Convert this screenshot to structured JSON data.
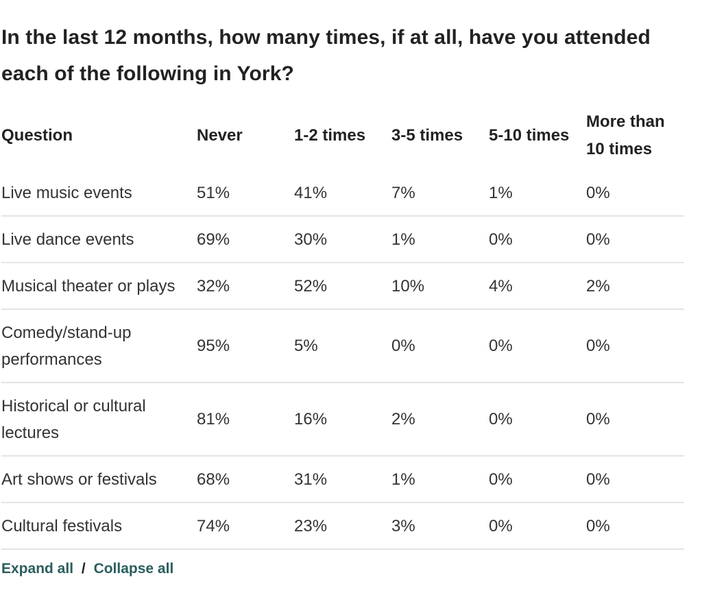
{
  "title": "In the last 12 months, how many times, if at all, have you attended each of the following in York?",
  "table": {
    "headers": [
      "Question",
      "Never",
      "1-2 times",
      "3-5 times",
      "5-10 times",
      "More than 10 times"
    ],
    "rows": [
      {
        "question": "Live music events",
        "values": [
          "51%",
          "41%",
          "7%",
          "1%",
          "0%"
        ]
      },
      {
        "question": "Live dance events",
        "values": [
          "69%",
          "30%",
          "1%",
          "0%",
          "0%"
        ]
      },
      {
        "question": "Musical theater or plays",
        "values": [
          "32%",
          "52%",
          "10%",
          "4%",
          "2%"
        ]
      },
      {
        "question": "Comedy/stand-up performances",
        "values": [
          "95%",
          "5%",
          "0%",
          "0%",
          "0%"
        ]
      },
      {
        "question": "Historical or cultural lectures",
        "values": [
          "81%",
          "16%",
          "2%",
          "0%",
          "0%"
        ]
      },
      {
        "question": "Art shows or festivals",
        "values": [
          "68%",
          "31%",
          "1%",
          "0%",
          "0%"
        ]
      },
      {
        "question": "Cultural festivals",
        "values": [
          "74%",
          "23%",
          "3%",
          "0%",
          "0%"
        ]
      }
    ]
  },
  "links": {
    "expand_label": "Expand all",
    "separator": "/",
    "collapse_label": "Collapse all"
  },
  "colors": {
    "link": "#2a5e5e",
    "row_divider": "#e4e4e4",
    "text": "#222222"
  }
}
